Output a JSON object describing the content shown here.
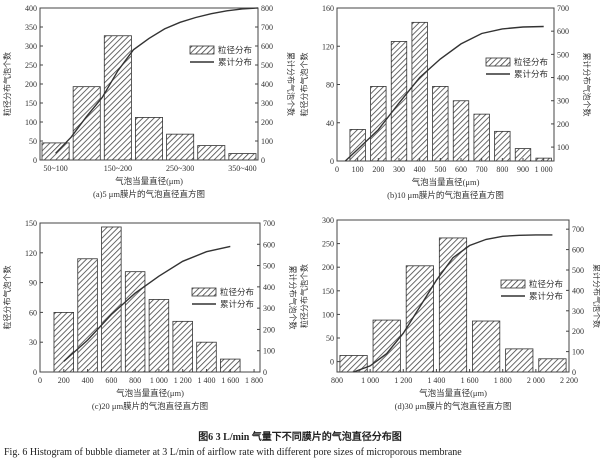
{
  "chart_data": [
    {
      "type": "bar",
      "title": "(a)5 μm膜片的气泡直径直方图",
      "xlabel": "气泡当量直径(μm)",
      "ylabel": "粒径分布气泡个数",
      "ylabel_right": "累计分布气泡个数",
      "categories": [
        "50~100",
        "100~150",
        "150~200",
        "200~250",
        "250~300",
        "300~350",
        "350~400"
      ],
      "xtick_labels": [
        "50~100",
        "",
        "150~200",
        "",
        "250~300",
        "",
        "350~400"
      ],
      "bin_edges": [
        50,
        100,
        150,
        200,
        250,
        300,
        350,
        400
      ],
      "xlim": [
        50,
        400
      ],
      "values": [
        45,
        193,
        327,
        112,
        68,
        38,
        17
      ],
      "ylim": [
        0,
        400
      ],
      "yticks": [
        0,
        50,
        100,
        150,
        200,
        250,
        300,
        350,
        400
      ],
      "ylim_right": [
        0,
        800
      ],
      "yticks_right": [
        0,
        100,
        200,
        300,
        400,
        500,
        600,
        700,
        800
      ],
      "cumulative": {
        "x": [
          75,
          100,
          125,
          150,
          175,
          200,
          225,
          250,
          275,
          300,
          325,
          350,
          375,
          400
        ],
        "y": [
          35,
          120,
          230,
          330,
          470,
          580,
          640,
          690,
          725,
          750,
          770,
          785,
          795,
          800
        ]
      },
      "legend": [
        "粒径分布",
        "累计分布"
      ],
      "legend_position": "right"
    },
    {
      "type": "bar",
      "title": "(b)10 μm膜片的气泡直径直方图",
      "xlabel": "气泡当量直径(μm)",
      "ylabel": "粒径分布气泡个数",
      "ylabel_right": "累计分布气泡个数",
      "centers": [
        100,
        200,
        300,
        400,
        500,
        600,
        700,
        800,
        900,
        1000
      ],
      "bar_width": 75,
      "xlim": [
        0,
        1050
      ],
      "xticks": [
        0,
        100,
        200,
        300,
        400,
        500,
        600,
        700,
        800,
        900,
        1000
      ],
      "xtick_labels": [
        "0",
        "100",
        "200",
        "300",
        "400",
        "500",
        "600",
        "700",
        "800",
        "900",
        "1 000"
      ],
      "values": [
        33,
        78,
        125,
        145,
        78,
        63,
        49,
        31,
        13,
        3
      ],
      "ylim": [
        0,
        160
      ],
      "yticks": [
        0,
        40,
        80,
        120,
        160
      ],
      "ylim_right": [
        40,
        700
      ],
      "yticks_right": [
        100,
        200,
        300,
        400,
        500,
        600,
        700
      ],
      "cumulative": {
        "x": [
          40,
          100,
          200,
          300,
          400,
          500,
          600,
          700,
          800,
          900,
          1000
        ],
        "y": [
          40,
          90,
          175,
          290,
          400,
          480,
          545,
          590,
          610,
          618,
          620
        ]
      },
      "legend": [
        "粒径分布",
        "累计分布"
      ],
      "legend_position": "right"
    },
    {
      "type": "bar",
      "title": "(c)20 μm膜片的气泡直径直方图",
      "xlabel": "气泡当量直径(μm)",
      "ylabel": "粒径分布气泡个数",
      "ylabel_right": "累计分布气泡个数",
      "centers": [
        200,
        400,
        600,
        800,
        1000,
        1200,
        1400,
        1600
      ],
      "bar_width": 165,
      "xlim": [
        0,
        1850
      ],
      "xticks": [
        0,
        200,
        400,
        600,
        800,
        1000,
        1200,
        1400,
        1600,
        1800
      ],
      "xtick_labels": [
        "0",
        "200",
        "400",
        "600",
        "800",
        "1 000",
        "1 200",
        "1 400",
        "1 600",
        "1 800"
      ],
      "values": [
        60,
        114,
        146,
        101,
        73,
        51,
        30,
        13
      ],
      "ylim": [
        0,
        150
      ],
      "yticks": [
        0,
        30,
        60,
        90,
        120,
        150
      ],
      "ylim_right": [
        0,
        700
      ],
      "yticks_right": [
        0,
        100,
        200,
        300,
        400,
        500,
        600,
        700
      ],
      "cumulative": {
        "x": [
          200,
          400,
          600,
          800,
          1000,
          1200,
          1400,
          1600
        ],
        "y": [
          50,
          150,
          270,
          370,
          450,
          520,
          565,
          590
        ]
      },
      "legend": [
        "粒径分布",
        "累计分布"
      ],
      "legend_position": "right"
    },
    {
      "type": "bar",
      "title": "(d)30 μm膜片的气泡直径直方图",
      "xlabel": "气泡当量直径(μm)",
      "ylabel": "粒径分布气泡个数",
      "ylabel_right": "累计分布气泡个数",
      "centers": [
        900,
        1100,
        1300,
        1500,
        1700,
        1900,
        2100
      ],
      "bar_width": 165,
      "xlim": [
        800,
        2200
      ],
      "xticks": [
        800,
        1000,
        1200,
        1400,
        1600,
        1800,
        2000,
        2200
      ],
      "xtick_labels": [
        "800",
        "1 000",
        "1 200",
        "1 400",
        "1 600",
        "1 800",
        "2 000",
        "2 200"
      ],
      "values": [
        13,
        88,
        203,
        262,
        86,
        27,
        6
      ],
      "ylim": [
        -22,
        300
      ],
      "yticks": [
        0,
        50,
        100,
        150,
        200,
        250,
        300
      ],
      "ylim_right": [
        0,
        745
      ],
      "yticks_right": [
        0,
        100,
        200,
        300,
        400,
        500,
        600,
        700
      ],
      "cumulative": {
        "x": [
          900,
          1000,
          1100,
          1200,
          1300,
          1400,
          1500,
          1600,
          1700,
          1800,
          1900,
          2000,
          2100
        ],
        "y": [
          0,
          30,
          90,
          190,
          320,
          450,
          560,
          620,
          650,
          665,
          670,
          672,
          672
        ]
      },
      "legend": [
        "粒径分布",
        "累计分布"
      ],
      "legend_position": "right"
    }
  ],
  "caption_cn": "图6   3 L/min 气量下不同膜片的气泡直径分布图",
  "caption_en": "Fig. 6    Histogram of bubble diameter at 3 L/min of airflow rate with different pore sizes of microporous membrane"
}
